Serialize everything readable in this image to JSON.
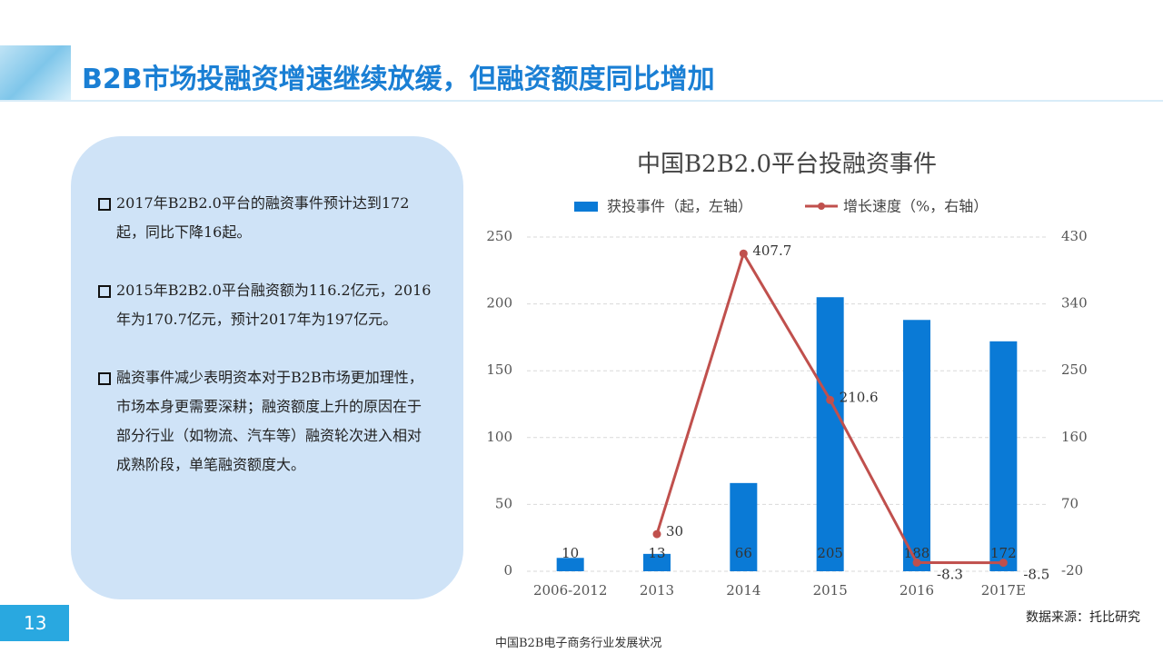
{
  "header": {
    "title": "B2B市场投融资增速继续放缓，但融资额度同比增加"
  },
  "bullets": [
    "2017年B2B2.0平台的融资事件预计达到172起，同比下降16起。",
    "2015年B2B2.0平台融资额为116.2亿元，2016年为170.7亿元，预计2017年为197亿元。",
    "融资事件减少表明资本对于B2B市场更加理性，市场本身更需要深耕；融资额度上升的原因在于部分行业（如物流、汽车等）融资轮次进入相对成熟阶段，单笔融资额度大。"
  ],
  "page_number": "13",
  "footer": "中国B2B电子商务行业发展状况",
  "chart_data": {
    "type": "bar-line",
    "title": "中国B2B2.0平台投融资事件",
    "categories": [
      "2006-2012",
      "2013",
      "2014",
      "2015",
      "2016",
      "2017E"
    ],
    "series": [
      {
        "name": "获投事件（起，左轴）",
        "type": "bar",
        "color": "#0a7ad6",
        "values": [
          10,
          13,
          66,
          205,
          188,
          172
        ]
      },
      {
        "name": "增长速度（%，右轴）",
        "type": "line",
        "axis": "y2",
        "color": "#c0504d",
        "values": [
          null,
          30,
          407.7,
          210.6,
          -8.3,
          -8.5
        ]
      }
    ],
    "ylim": [
      0,
      250
    ],
    "yticks": [
      0,
      50,
      100,
      150,
      200,
      250
    ],
    "y2lim": [
      -20,
      430
    ],
    "y2ticks": [
      -20,
      70,
      160,
      250,
      340,
      430
    ],
    "grid": true,
    "legend": "top",
    "source": "数据来源：托比研究"
  }
}
